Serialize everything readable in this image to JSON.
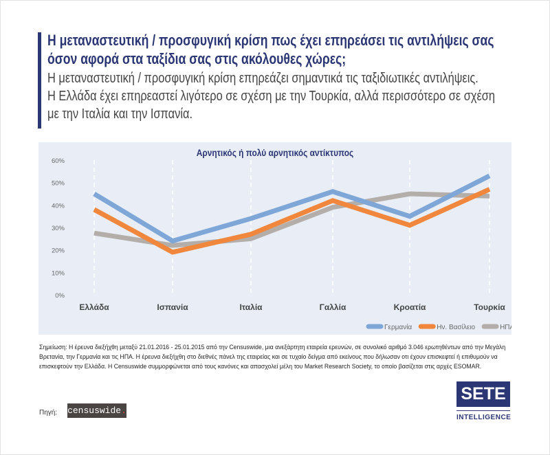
{
  "header": {
    "title": "Η μεταναστευτική / προσφυγική κρίση πως έχει επηρεάσει τις αντιλήψεις σας όσον αφορά στα ταξίδια σας στις ακόλουθες χώρες;",
    "subtitle_lines": [
      "Η μεταναστευτική / προσφυγική κρίση επηρεάζει σημαντικά τις ταξιδιωτικές αντιλήψεις.",
      "Η Ελλάδα έχει επηρεαστεί λιγότερο σε σχέση με την Τουρκία, αλλά περισσότερο σε σχέση",
      "με την Ιταλία και την Ισπανία."
    ]
  },
  "chart_data": {
    "type": "line",
    "title": "Αρνητικός ή πολύ αρνητικός αντίκτυπος",
    "categories": [
      "Ελλάδα",
      "Ισπανία",
      "Ιταλία",
      "Γαλλία",
      "Κροατία",
      "Τουρκία"
    ],
    "ylim": [
      0,
      60
    ],
    "yticks": [
      "0%",
      "10%",
      "20%",
      "30%",
      "40%",
      "50%",
      "60%"
    ],
    "grid": "vertical dashed",
    "legend": "bottom-right",
    "series": [
      {
        "name": "Γερμανία",
        "color": "#7ea6d6",
        "values": [
          45,
          24,
          34,
          46,
          35,
          53
        ]
      },
      {
        "name": "Ην. Βασίλειο",
        "color": "#f0873d",
        "values": [
          38,
          19,
          27,
          42,
          31,
          47
        ]
      },
      {
        "name": "ΗΠΑ",
        "color": "#b3aeaa",
        "values": [
          27.5,
          22,
          25,
          39,
          45,
          44
        ]
      }
    ]
  },
  "footer": {
    "note": "Σημείωση: Η έρευνα διεξήχθη μεταξύ 21.01.2016 - 25.01.2015 από την Censuswide, μια ανεξάρτητη εταιρεία ερευνών, σε συνολικό αριθμό 3.046 ερωτηθέντων από την Μεγάλη Βρετανία, την Γερμανία και τις ΗΠΑ. Η έρευνα διεξήχθη στο διεθνές πάνελ της εταιρείας και σε τυχαίο δείγμα από εκείνους που δήλωσαν οτι έχουν επισκεφτεί ή επιθυμούν να επισκεφτούν την Ελλάδα. Η Censuswide συμμορφώνεται από τους κανόνες και απασχολεί μέλη του Market Research Society, το οποίο βασίζεται στις αρχές ESOMAR.",
    "source_label": "Πηγή:",
    "source_logo": "censuswide",
    "brand": "SETE",
    "brand_sub": "INTELLIGENCE"
  }
}
